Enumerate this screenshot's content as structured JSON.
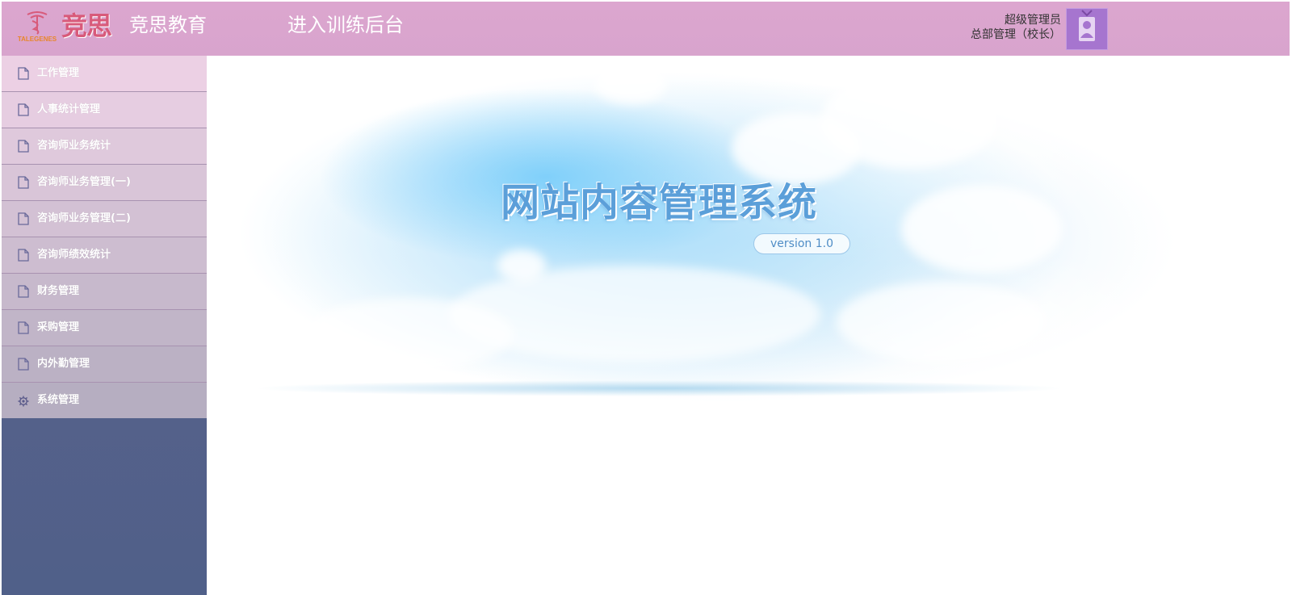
{
  "header": {
    "logo": {
      "name": "竞思",
      "sub": "TALEGENES"
    },
    "brand_name": "竞思教育",
    "enter_link": "进入训练后台",
    "user": {
      "name": "超级管理员",
      "role": "总部管理（校长）"
    }
  },
  "sidebar": {
    "items": [
      {
        "label": "工作管理",
        "icon": "document-icon"
      },
      {
        "label": "人事统计管理",
        "icon": "document-icon"
      },
      {
        "label": "咨询师业务统计",
        "icon": "document-icon"
      },
      {
        "label": "咨询师业务管理(一)",
        "icon": "document-icon"
      },
      {
        "label": "咨询师业务管理(二)",
        "icon": "document-icon"
      },
      {
        "label": "咨询师绩效统计",
        "icon": "document-icon"
      },
      {
        "label": "财务管理",
        "icon": "document-icon"
      },
      {
        "label": "采购管理",
        "icon": "document-icon"
      },
      {
        "label": "内外勤管理",
        "icon": "document-icon"
      },
      {
        "label": "系统管理",
        "icon": "gear-icon"
      }
    ]
  },
  "main": {
    "title": "网站内容管理系统",
    "version": "version 1.0"
  },
  "colors": {
    "header_bg": "#d8a4cd",
    "menu_text": "#ffffff",
    "title_text": "#5b9fd9",
    "avatar_bg": "#a675cf"
  }
}
